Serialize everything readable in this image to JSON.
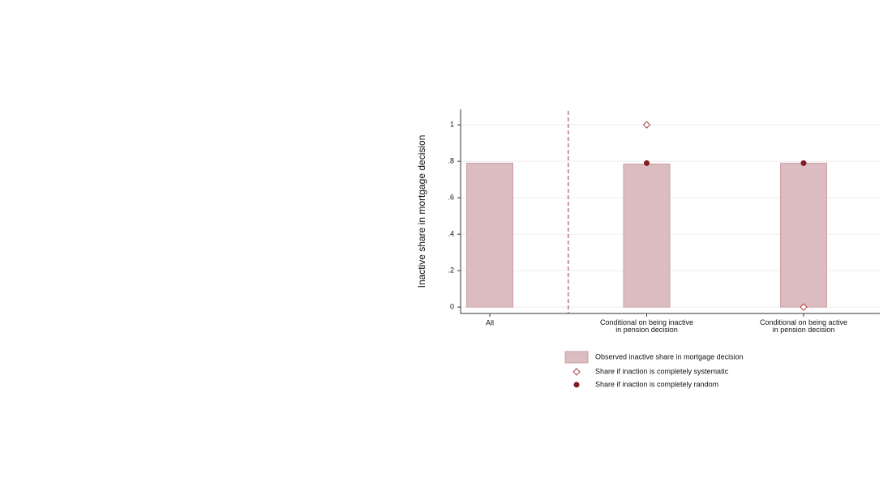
{
  "chart_data": {
    "type": "bar",
    "y_label": "Inactive share in mortgage decision",
    "categories": [
      "All",
      "Conditional on being inactive\nin pension decision",
      "Conditional on being active\nin pension decision"
    ],
    "series": [
      {
        "name": "Observed inactive share in mortgage decision",
        "marker": "bar",
        "color": "#dbbcc0",
        "values": [
          0.79,
          0.785,
          0.79
        ]
      },
      {
        "name": "Share if inaction is completely systematic",
        "marker": "hollow-diamond",
        "color": "#b0404a",
        "values": [
          null,
          1,
          0
        ]
      },
      {
        "name": "Share if inaction is completely random",
        "marker": "dot",
        "color": "#7f1d22",
        "values": [
          null,
          0.79,
          0.79
        ]
      }
    ],
    "ylim": [
      -0.035,
      1.085
    ],
    "yticks": [
      0,
      {
        "value": 0.2,
        "label": ".2"
      },
      {
        "value": 0.4,
        "label": ".4"
      },
      {
        "value": 0.6,
        "label": ".6"
      },
      {
        "value": 0.8,
        "label": ".8"
      },
      1
    ],
    "grid": true
  }
}
